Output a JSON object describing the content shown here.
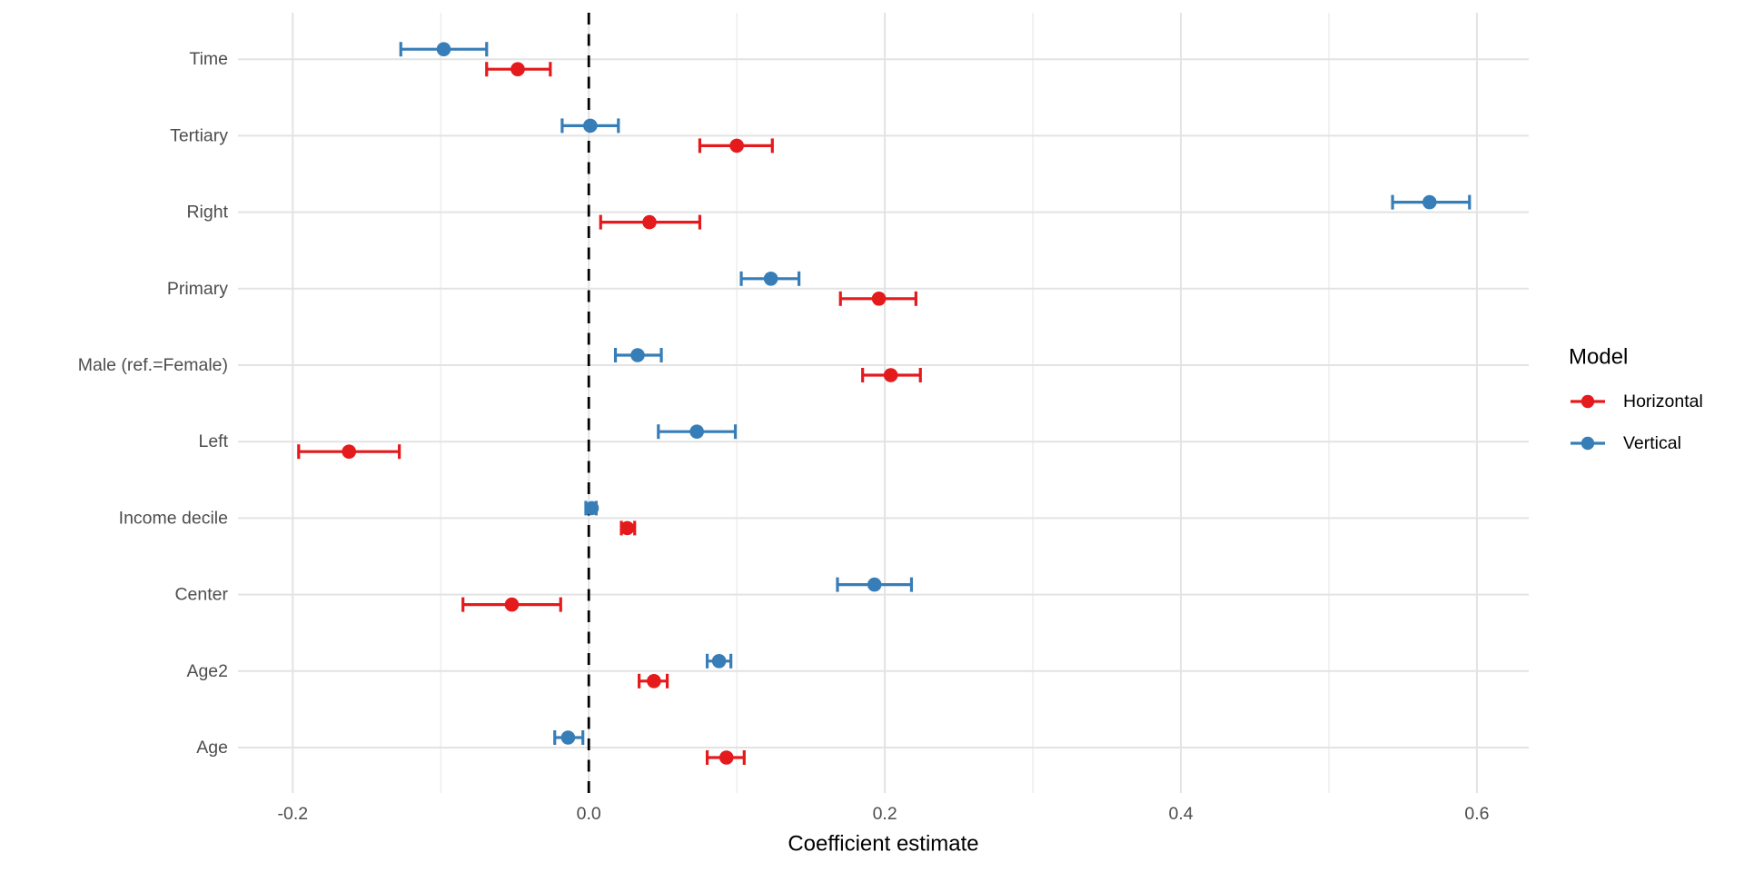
{
  "chart_data": {
    "type": "scatter",
    "subtype": "coefficient-dot-whisker",
    "title": "",
    "xlabel": "Coefficient estimate",
    "ylabel": "",
    "xlim": [
      -0.237,
      0.635
    ],
    "x_ticks": [
      -0.2,
      0.0,
      0.2,
      0.4,
      0.6
    ],
    "x_tick_labels": [
      "-0.2",
      "0.0",
      "0.2",
      "0.4",
      "0.6"
    ],
    "x_minor_ticks": [
      -0.1,
      0.1,
      0.3,
      0.5
    ],
    "grid": "on",
    "zero_line": 0,
    "zero_line_style": "dashed",
    "categories": [
      "Time",
      "Tertiary",
      "Right",
      "Primary",
      "Male (ref.=Female)",
      "Left",
      "Income decile",
      "Center",
      "Age2",
      "Age"
    ],
    "legend": {
      "title": "Model",
      "position": "right",
      "entries": [
        {
          "label": "Horizontal",
          "color": "#e41a1c"
        },
        {
          "label": "Vertical",
          "color": "#377eb8"
        }
      ]
    },
    "series": [
      {
        "name": "Horizontal",
        "color": "#e41a1c",
        "dodge": "below",
        "points": [
          {
            "category": "Time",
            "estimate": -0.048,
            "ci_low": -0.069,
            "ci_high": -0.026
          },
          {
            "category": "Tertiary",
            "estimate": 0.1,
            "ci_low": 0.075,
            "ci_high": 0.124
          },
          {
            "category": "Right",
            "estimate": 0.041,
            "ci_low": 0.008,
            "ci_high": 0.075
          },
          {
            "category": "Primary",
            "estimate": 0.196,
            "ci_low": 0.17,
            "ci_high": 0.221
          },
          {
            "category": "Male (ref.=Female)",
            "estimate": 0.204,
            "ci_low": 0.185,
            "ci_high": 0.224
          },
          {
            "category": "Left",
            "estimate": -0.162,
            "ci_low": -0.196,
            "ci_high": -0.128
          },
          {
            "category": "Income decile",
            "estimate": 0.026,
            "ci_low": 0.022,
            "ci_high": 0.031
          },
          {
            "category": "Center",
            "estimate": -0.052,
            "ci_low": -0.085,
            "ci_high": -0.019
          },
          {
            "category": "Age2",
            "estimate": 0.044,
            "ci_low": 0.034,
            "ci_high": 0.053
          },
          {
            "category": "Age",
            "estimate": 0.093,
            "ci_low": 0.08,
            "ci_high": 0.105
          }
        ]
      },
      {
        "name": "Vertical",
        "color": "#377eb8",
        "dodge": "above",
        "points": [
          {
            "category": "Time",
            "estimate": -0.098,
            "ci_low": -0.127,
            "ci_high": -0.069
          },
          {
            "category": "Tertiary",
            "estimate": 0.001,
            "ci_low": -0.018,
            "ci_high": 0.02
          },
          {
            "category": "Right",
            "estimate": 0.568,
            "ci_low": 0.543,
            "ci_high": 0.595
          },
          {
            "category": "Primary",
            "estimate": 0.123,
            "ci_low": 0.103,
            "ci_high": 0.142
          },
          {
            "category": "Male (ref.=Female)",
            "estimate": 0.033,
            "ci_low": 0.018,
            "ci_high": 0.049
          },
          {
            "category": "Left",
            "estimate": 0.073,
            "ci_low": 0.047,
            "ci_high": 0.099
          },
          {
            "category": "Income decile",
            "estimate": 0.002,
            "ci_low": -0.002,
            "ci_high": 0.005
          },
          {
            "category": "Center",
            "estimate": 0.193,
            "ci_low": 0.168,
            "ci_high": 0.218
          },
          {
            "category": "Age2",
            "estimate": 0.088,
            "ci_low": 0.08,
            "ci_high": 0.096
          },
          {
            "category": "Age",
            "estimate": -0.014,
            "ci_low": -0.023,
            "ci_high": -0.004
          }
        ]
      }
    ]
  },
  "colors": {
    "background": "#ffffff",
    "horizontal_series": "#e41a1c",
    "vertical_series": "#377eb8",
    "grid_major": "#e3e3e3",
    "grid_minor": "#f0f0f0",
    "axis_text": "#4d4d4d",
    "title_text": "#000000",
    "zero_line": "#000000"
  }
}
